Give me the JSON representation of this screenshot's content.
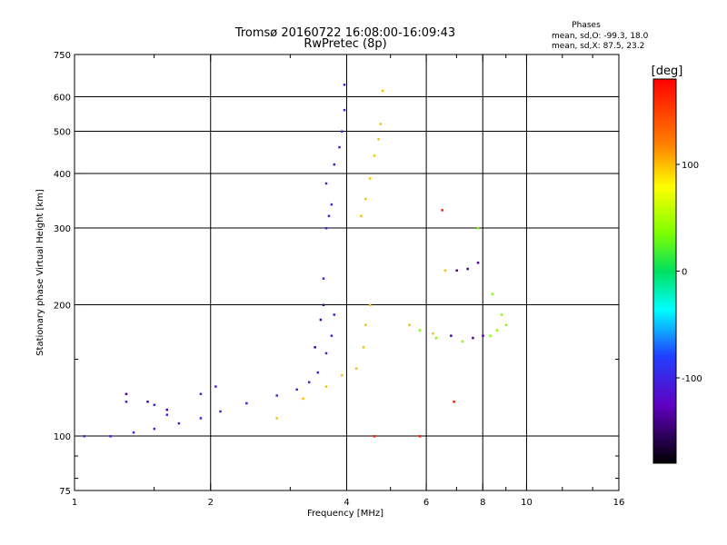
{
  "chart_data": {
    "type": "scatter",
    "title": "Tromsø 20160722 16:08:00-16:09:43",
    "subtitle": "RwPretec (8p)",
    "xlabel": "Frequency [MHz]",
    "ylabel": "Stationary phase Virtual Height [km]",
    "x_scale": "log2",
    "y_scale": "log",
    "xlim": [
      1,
      16
    ],
    "ylim": [
      75,
      750
    ],
    "x_ticks": [
      1,
      2,
      4,
      6,
      8,
      10,
      16
    ],
    "x_minor_ticks": [
      1.5,
      3,
      5,
      7,
      9,
      12,
      14
    ],
    "y_ticks": [
      75,
      100,
      200,
      300,
      400,
      500,
      600,
      750
    ],
    "y_minor_ticks": [
      80,
      90,
      150
    ],
    "grid_x": [
      2,
      4,
      6,
      8,
      10
    ],
    "grid_y": [
      100,
      200,
      300,
      400,
      500,
      600
    ],
    "legend_box": {
      "title": "Phases",
      "lines": [
        "mean, sd,O: -99.3, 18.0",
        "mean, sd,X:  87.5, 23.2"
      ]
    },
    "colorbar": {
      "label": "[deg]",
      "range": [
        -180,
        180
      ],
      "ticks": [
        100,
        0,
        -100
      ]
    },
    "series": [
      {
        "phase_deg": -100,
        "points": [
          [
            1.05,
            100
          ],
          [
            1.2,
            100
          ],
          [
            1.35,
            102
          ],
          [
            1.5,
            104
          ],
          [
            1.7,
            107
          ],
          [
            1.9,
            110
          ],
          [
            2.1,
            114
          ],
          [
            2.4,
            119
          ],
          [
            2.8,
            124
          ],
          [
            3.1,
            128
          ],
          [
            3.3,
            133
          ],
          [
            3.45,
            140
          ],
          [
            3.6,
            155
          ],
          [
            3.7,
            170
          ],
          [
            3.75,
            190
          ],
          [
            3.55,
            230
          ],
          [
            3.6,
            300
          ],
          [
            3.65,
            320
          ],
          [
            3.7,
            340
          ],
          [
            3.6,
            380
          ],
          [
            3.75,
            420
          ],
          [
            3.85,
            460
          ],
          [
            3.9,
            500
          ],
          [
            3.95,
            560
          ],
          [
            3.95,
            640
          ],
          [
            1.3,
            120
          ],
          [
            1.5,
            118
          ],
          [
            1.6,
            112
          ],
          [
            1.9,
            125
          ],
          [
            2.05,
            130
          ]
        ]
      },
      {
        "phase_deg": -140,
        "points": [
          [
            1.3,
            125
          ],
          [
            1.45,
            120
          ],
          [
            1.6,
            115
          ],
          [
            3.4,
            160
          ],
          [
            3.5,
            185
          ],
          [
            3.55,
            200
          ],
          [
            7.0,
            240
          ],
          [
            7.4,
            242
          ],
          [
            7.8,
            250
          ],
          [
            8.0,
            170
          ],
          [
            6.8,
            170
          ],
          [
            7.6,
            168
          ]
        ]
      },
      {
        "phase_deg": 100,
        "points": [
          [
            2.8,
            110
          ],
          [
            3.2,
            122
          ],
          [
            3.6,
            130
          ],
          [
            3.9,
            138
          ],
          [
            4.2,
            143
          ],
          [
            4.35,
            160
          ],
          [
            4.4,
            180
          ],
          [
            4.5,
            200
          ],
          [
            4.3,
            320
          ],
          [
            4.4,
            350
          ],
          [
            4.5,
            390
          ],
          [
            4.6,
            440
          ],
          [
            4.7,
            480
          ],
          [
            4.75,
            520
          ],
          [
            4.8,
            620
          ],
          [
            5.5,
            180
          ],
          [
            6.2,
            172
          ],
          [
            6.6,
            240
          ]
        ]
      },
      {
        "phase_deg": 40,
        "points": [
          [
            5.8,
            175
          ],
          [
            6.3,
            168
          ],
          [
            7.2,
            165
          ],
          [
            7.8,
            300
          ],
          [
            8.3,
            170
          ],
          [
            8.6,
            175
          ],
          [
            8.8,
            190
          ],
          [
            8.4,
            212
          ],
          [
            9.0,
            180
          ]
        ]
      },
      {
        "phase_deg": 170,
        "points": [
          [
            4.6,
            100
          ],
          [
            5.8,
            100
          ],
          [
            6.5,
            330
          ],
          [
            6.9,
            120
          ]
        ]
      }
    ]
  }
}
